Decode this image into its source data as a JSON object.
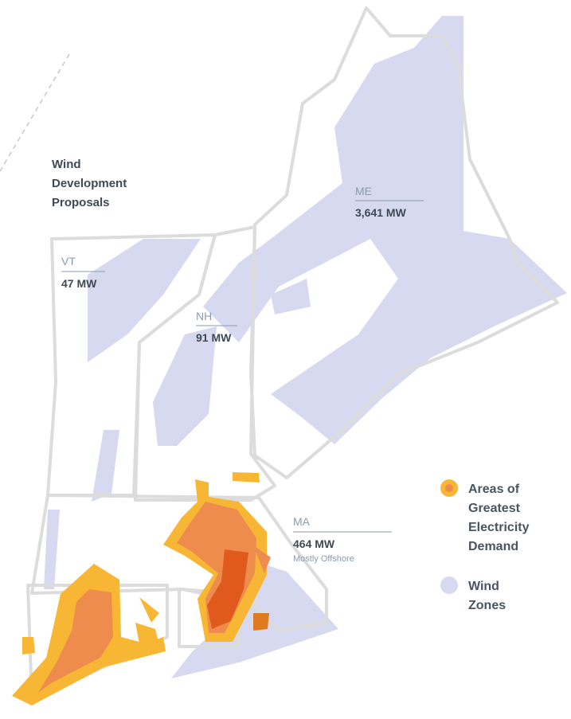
{
  "title_lines": [
    "Wind",
    "Development",
    "Proposals"
  ],
  "states": [
    {
      "abbr": "ME",
      "value": "3,641 MW"
    },
    {
      "abbr": "VT",
      "value": "47 MW"
    },
    {
      "abbr": "NH",
      "value": "91 MW"
    },
    {
      "abbr": "MA",
      "value": "464 MW",
      "note": "Mostly Offshore"
    }
  ],
  "legend": [
    {
      "label": [
        "Areas of",
        "Greatest",
        "Electricity",
        "Demand"
      ]
    },
    {
      "label": [
        "Wind",
        "Zones"
      ]
    }
  ]
}
